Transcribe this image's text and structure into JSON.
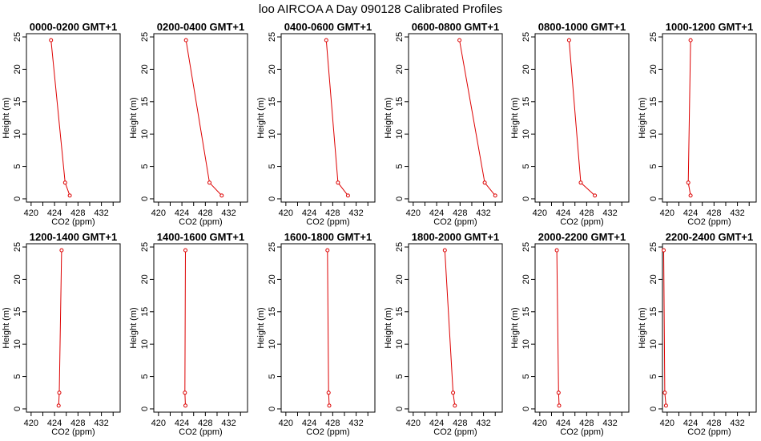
{
  "title": "loo AIRCOA A  Day 090128  Calibrated Profiles",
  "chart_data": [
    {
      "type": "line",
      "title": "0000-0200 GMT+1",
      "xlabel": "CO2 (ppm)",
      "ylabel": "Height (m)",
      "xlim": [
        419.2,
        435.2
      ],
      "ylim": [
        -0.5,
        25.5
      ],
      "x_ticks": [
        420,
        424,
        428,
        432
      ],
      "y_ticks": [
        0,
        5,
        10,
        15,
        20,
        25
      ],
      "series": [
        {
          "x": [
            423.4,
            425.8,
            426.6
          ],
          "y": [
            24.5,
            2.5,
            0.5
          ],
          "color": "#dd0000"
        }
      ]
    },
    {
      "type": "line",
      "title": "0200-0400 GMT+1",
      "xlabel": "CO2 (ppm)",
      "ylabel": "Height (m)",
      "xlim": [
        419.2,
        435.2
      ],
      "ylim": [
        -0.5,
        25.5
      ],
      "x_ticks": [
        420,
        424,
        428,
        432
      ],
      "y_ticks": [
        0,
        5,
        10,
        15,
        20,
        25
      ],
      "series": [
        {
          "x": [
            424.7,
            428.7,
            430.8
          ],
          "y": [
            24.5,
            2.5,
            0.5
          ],
          "color": "#dd0000"
        }
      ]
    },
    {
      "type": "line",
      "title": "0400-0600 GMT+1",
      "xlabel": "CO2 (ppm)",
      "ylabel": "Height (m)",
      "xlim": [
        419.2,
        435.2
      ],
      "ylim": [
        -0.5,
        25.5
      ],
      "x_ticks": [
        420,
        424,
        428,
        432
      ],
      "y_ticks": [
        0,
        5,
        10,
        15,
        20,
        25
      ],
      "series": [
        {
          "x": [
            426.9,
            428.9,
            430.6
          ],
          "y": [
            24.5,
            2.5,
            0.5
          ],
          "color": "#dd0000"
        }
      ]
    },
    {
      "type": "line",
      "title": "0600-0800 GMT+1",
      "xlabel": "CO2 (ppm)",
      "ylabel": "Height (m)",
      "xlim": [
        419.2,
        435.2
      ],
      "ylim": [
        -0.5,
        25.5
      ],
      "x_ticks": [
        420,
        424,
        428,
        432
      ],
      "y_ticks": [
        0,
        5,
        10,
        15,
        20,
        25
      ],
      "series": [
        {
          "x": [
            427.9,
            432.2,
            434.0
          ],
          "y": [
            24.5,
            2.5,
            0.5
          ],
          "color": "#dd0000"
        }
      ]
    },
    {
      "type": "line",
      "title": "0800-1000 GMT+1",
      "xlabel": "CO2 (ppm)",
      "ylabel": "Height (m)",
      "xlim": [
        419.2,
        435.2
      ],
      "ylim": [
        -0.5,
        25.5
      ],
      "x_ticks": [
        420,
        424,
        428,
        432
      ],
      "y_ticks": [
        0,
        5,
        10,
        15,
        20,
        25
      ],
      "series": [
        {
          "x": [
            425.0,
            427.0,
            429.4
          ],
          "y": [
            24.5,
            2.5,
            0.5
          ],
          "color": "#dd0000"
        }
      ]
    },
    {
      "type": "line",
      "title": "1000-1200 GMT+1",
      "xlabel": "CO2 (ppm)",
      "ylabel": "Height (m)",
      "xlim": [
        419.2,
        435.2
      ],
      "ylim": [
        -0.5,
        25.5
      ],
      "x_ticks": [
        420,
        424,
        428,
        432
      ],
      "y_ticks": [
        0,
        5,
        10,
        15,
        20,
        25
      ],
      "series": [
        {
          "x": [
            424.0,
            423.6,
            424.0
          ],
          "y": [
            24.5,
            2.5,
            0.5
          ],
          "color": "#dd0000"
        }
      ]
    },
    {
      "type": "line",
      "title": "1200-1400 GMT+1",
      "xlabel": "CO2 (ppm)",
      "ylabel": "Height (m)",
      "xlim": [
        419.2,
        435.2
      ],
      "ylim": [
        -0.5,
        25.5
      ],
      "x_ticks": [
        420,
        424,
        428,
        432
      ],
      "y_ticks": [
        0,
        5,
        10,
        15,
        20,
        25
      ],
      "series": [
        {
          "x": [
            425.2,
            424.8,
            424.7
          ],
          "y": [
            24.5,
            2.5,
            0.5
          ],
          "color": "#dd0000"
        }
      ]
    },
    {
      "type": "line",
      "title": "1400-1600 GMT+1",
      "xlabel": "CO2 (ppm)",
      "ylabel": "Height (m)",
      "xlim": [
        419.2,
        435.2
      ],
      "ylim": [
        -0.5,
        25.5
      ],
      "x_ticks": [
        420,
        424,
        428,
        432
      ],
      "y_ticks": [
        0,
        5,
        10,
        15,
        20,
        25
      ],
      "series": [
        {
          "x": [
            424.6,
            424.5,
            424.6
          ],
          "y": [
            24.5,
            2.5,
            0.5
          ],
          "color": "#dd0000"
        }
      ]
    },
    {
      "type": "line",
      "title": "1600-1800 GMT+1",
      "xlabel": "CO2 (ppm)",
      "ylabel": "Height (m)",
      "xlim": [
        419.2,
        435.2
      ],
      "ylim": [
        -0.5,
        25.5
      ],
      "x_ticks": [
        420,
        424,
        428,
        432
      ],
      "y_ticks": [
        0,
        5,
        10,
        15,
        20,
        25
      ],
      "series": [
        {
          "x": [
            427.1,
            427.3,
            427.4
          ],
          "y": [
            24.5,
            2.5,
            0.5
          ],
          "color": "#dd0000"
        }
      ]
    },
    {
      "type": "line",
      "title": "1800-2000 GMT+1",
      "xlabel": "CO2 (ppm)",
      "ylabel": "Height (m)",
      "xlim": [
        419.2,
        435.2
      ],
      "ylim": [
        -0.5,
        25.5
      ],
      "x_ticks": [
        420,
        424,
        428,
        432
      ],
      "y_ticks": [
        0,
        5,
        10,
        15,
        20,
        25
      ],
      "series": [
        {
          "x": [
            425.4,
            426.8,
            427.1
          ],
          "y": [
            24.5,
            2.5,
            0.5
          ],
          "color": "#dd0000"
        }
      ]
    },
    {
      "type": "line",
      "title": "2000-2200 GMT+1",
      "xlabel": "CO2 (ppm)",
      "ylabel": "Height (m)",
      "xlim": [
        419.2,
        435.2
      ],
      "ylim": [
        -0.5,
        25.5
      ],
      "x_ticks": [
        420,
        424,
        428,
        432
      ],
      "y_ticks": [
        0,
        5,
        10,
        15,
        20,
        25
      ],
      "series": [
        {
          "x": [
            422.9,
            423.2,
            423.3
          ],
          "y": [
            24.5,
            2.5,
            0.5
          ],
          "color": "#dd0000"
        }
      ]
    },
    {
      "type": "line",
      "title": "2200-2400 GMT+1",
      "xlabel": "CO2 (ppm)",
      "ylabel": "Height (m)",
      "xlim": [
        419.2,
        435.2
      ],
      "ylim": [
        -0.5,
        25.5
      ],
      "x_ticks": [
        420,
        424,
        428,
        432
      ],
      "y_ticks": [
        0,
        5,
        10,
        15,
        20,
        25
      ],
      "series": [
        {
          "x": [
            419.4,
            419.6,
            419.8
          ],
          "y": [
            24.5,
            2.5,
            0.5
          ],
          "color": "#dd0000"
        }
      ]
    }
  ]
}
